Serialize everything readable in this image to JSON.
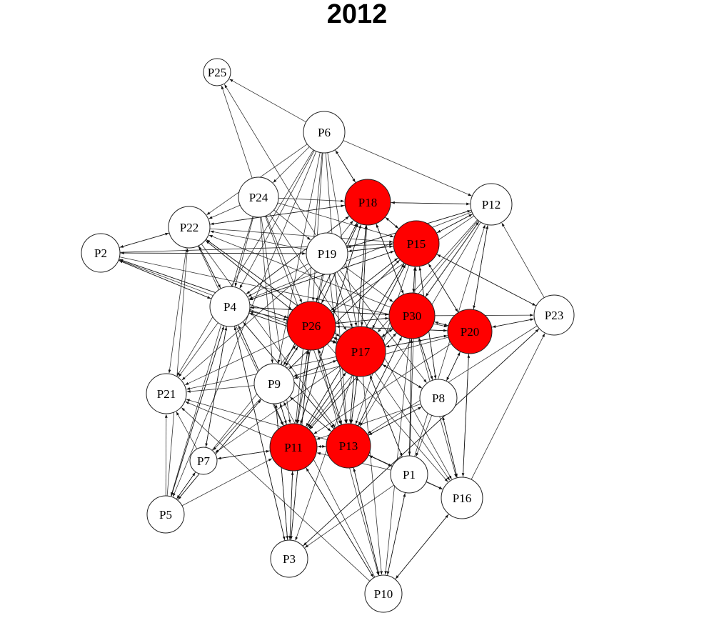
{
  "title": "2012",
  "colors": {
    "highlight": "#ff0000",
    "normal": "#ffffff",
    "stroke": "#222222",
    "edge": "#111111"
  },
  "nodes": [
    {
      "id": "P25",
      "label": "P25",
      "highlight": false
    },
    {
      "id": "P6",
      "label": "P6",
      "highlight": false
    },
    {
      "id": "P24",
      "label": "P24",
      "highlight": false
    },
    {
      "id": "P22",
      "label": "P22",
      "highlight": false
    },
    {
      "id": "P2",
      "label": "P2",
      "highlight": false
    },
    {
      "id": "P18",
      "label": "P18",
      "highlight": true
    },
    {
      "id": "P12",
      "label": "P12",
      "highlight": false
    },
    {
      "id": "P15",
      "label": "P15",
      "highlight": true
    },
    {
      "id": "P19",
      "label": "P19",
      "highlight": false
    },
    {
      "id": "P4",
      "label": "P4",
      "highlight": false
    },
    {
      "id": "P26",
      "label": "P26",
      "highlight": true
    },
    {
      "id": "P30",
      "label": "P30",
      "highlight": true
    },
    {
      "id": "P20",
      "label": "P20",
      "highlight": true
    },
    {
      "id": "P23",
      "label": "P23",
      "highlight": false
    },
    {
      "id": "P17",
      "label": "P17",
      "highlight": true
    },
    {
      "id": "P21",
      "label": "P21",
      "highlight": false
    },
    {
      "id": "P9",
      "label": "P9",
      "highlight": false
    },
    {
      "id": "P8",
      "label": "P8",
      "highlight": false
    },
    {
      "id": "P11",
      "label": "P11",
      "highlight": true
    },
    {
      "id": "P13",
      "label": "P13",
      "highlight": true
    },
    {
      "id": "P7",
      "label": "P7",
      "highlight": false
    },
    {
      "id": "P1",
      "label": "P1",
      "highlight": false
    },
    {
      "id": "P16",
      "label": "P16",
      "highlight": false
    },
    {
      "id": "P5",
      "label": "P5",
      "highlight": false
    },
    {
      "id": "P3",
      "label": "P3",
      "highlight": false
    },
    {
      "id": "P10",
      "label": "P10",
      "highlight": false
    }
  ],
  "edges": [
    [
      "P6",
      "P25"
    ],
    [
      "P6",
      "P24"
    ],
    [
      "P6",
      "P22"
    ],
    [
      "P6",
      "P18"
    ],
    [
      "P6",
      "P12"
    ],
    [
      "P6",
      "P17"
    ],
    [
      "P6",
      "P26"
    ],
    [
      "P6",
      "P4"
    ],
    [
      "P6",
      "P9"
    ],
    [
      "P6",
      "P21"
    ],
    [
      "P6",
      "P11"
    ],
    [
      "P6",
      "P13"
    ],
    [
      "P6",
      "P5"
    ],
    [
      "P24",
      "P25"
    ],
    [
      "P24",
      "P22"
    ],
    [
      "P24",
      "P18"
    ],
    [
      "P24",
      "P19"
    ],
    [
      "P24",
      "P15"
    ],
    [
      "P24",
      "P26"
    ],
    [
      "P24",
      "P17"
    ],
    [
      "P24",
      "P9"
    ],
    [
      "P24",
      "P4"
    ],
    [
      "P24",
      "P11"
    ],
    [
      "P24",
      "P13"
    ],
    [
      "P24",
      "P5"
    ],
    [
      "P22",
      "P2"
    ],
    [
      "P22",
      "P18"
    ],
    [
      "P22",
      "P15"
    ],
    [
      "P22",
      "P26"
    ],
    [
      "P22",
      "P17"
    ],
    [
      "P22",
      "P4"
    ],
    [
      "P22",
      "P21"
    ],
    [
      "P22",
      "P11"
    ],
    [
      "P22",
      "P13"
    ],
    [
      "P2",
      "P22"
    ],
    [
      "P2",
      "P19"
    ],
    [
      "P2",
      "P15"
    ],
    [
      "P2",
      "P26"
    ],
    [
      "P2",
      "P17"
    ],
    [
      "P2",
      "P4"
    ],
    [
      "P2",
      "P20"
    ],
    [
      "P18",
      "P12"
    ],
    [
      "P18",
      "P6"
    ],
    [
      "P18",
      "P15"
    ],
    [
      "P18",
      "P26"
    ],
    [
      "P18",
      "P17"
    ],
    [
      "P18",
      "P30"
    ],
    [
      "P18",
      "P11"
    ],
    [
      "P18",
      "P13"
    ],
    [
      "P18",
      "P4"
    ],
    [
      "P18",
      "P9"
    ],
    [
      "P18",
      "P22"
    ],
    [
      "P12",
      "P18"
    ],
    [
      "P12",
      "P15"
    ],
    [
      "P12",
      "P26"
    ],
    [
      "P12",
      "P17"
    ],
    [
      "P12",
      "P30"
    ],
    [
      "P12",
      "P20"
    ],
    [
      "P12",
      "P19"
    ],
    [
      "P12",
      "P11"
    ],
    [
      "P12",
      "P13"
    ],
    [
      "P12",
      "P4"
    ],
    [
      "P15",
      "P12"
    ],
    [
      "P15",
      "P18"
    ],
    [
      "P15",
      "P26"
    ],
    [
      "P15",
      "P17"
    ],
    [
      "P15",
      "P30"
    ],
    [
      "P15",
      "P20"
    ],
    [
      "P15",
      "P23"
    ],
    [
      "P15",
      "P11"
    ],
    [
      "P15",
      "P13"
    ],
    [
      "P15",
      "P8"
    ],
    [
      "P15",
      "P19"
    ],
    [
      "P15",
      "P4"
    ],
    [
      "P15",
      "P9"
    ],
    [
      "P19",
      "P2"
    ],
    [
      "P19",
      "P25"
    ],
    [
      "P19",
      "P18"
    ],
    [
      "P19",
      "P15"
    ],
    [
      "P19",
      "P12"
    ],
    [
      "P19",
      "P26"
    ],
    [
      "P19",
      "P17"
    ],
    [
      "P19",
      "P30"
    ],
    [
      "P19",
      "P11"
    ],
    [
      "P19",
      "P13"
    ],
    [
      "P19",
      "P4"
    ],
    [
      "P19",
      "P22"
    ],
    [
      "P19",
      "P21"
    ],
    [
      "P19",
      "P16"
    ],
    [
      "P19",
      "P8"
    ],
    [
      "P4",
      "P2"
    ],
    [
      "P4",
      "P22"
    ],
    [
      "P4",
      "P26"
    ],
    [
      "P4",
      "P17"
    ],
    [
      "P4",
      "P21"
    ],
    [
      "P4",
      "P5"
    ],
    [
      "P4",
      "P7"
    ],
    [
      "P4",
      "P11"
    ],
    [
      "P4",
      "P13"
    ],
    [
      "P4",
      "P3"
    ],
    [
      "P4",
      "P18"
    ],
    [
      "P4",
      "P15"
    ],
    [
      "P4",
      "P30"
    ],
    [
      "P26",
      "P18"
    ],
    [
      "P26",
      "P15"
    ],
    [
      "P26",
      "P17"
    ],
    [
      "P26",
      "P11"
    ],
    [
      "P26",
      "P13"
    ],
    [
      "P26",
      "P4"
    ],
    [
      "P26",
      "P22"
    ],
    [
      "P26",
      "P21"
    ],
    [
      "P26",
      "P9"
    ],
    [
      "P26",
      "P30"
    ],
    [
      "P26",
      "P20"
    ],
    [
      "P26",
      "P2"
    ],
    [
      "P26",
      "P16"
    ],
    [
      "P26",
      "P3"
    ],
    [
      "P26",
      "P10"
    ],
    [
      "P30",
      "P15"
    ],
    [
      "P30",
      "P18"
    ],
    [
      "P30",
      "P20"
    ],
    [
      "P30",
      "P17"
    ],
    [
      "P30",
      "P26"
    ],
    [
      "P30",
      "P23"
    ],
    [
      "P30",
      "P12"
    ],
    [
      "P30",
      "P8"
    ],
    [
      "P30",
      "P11"
    ],
    [
      "P30",
      "P13"
    ],
    [
      "P30",
      "P1"
    ],
    [
      "P30",
      "P16"
    ],
    [
      "P30",
      "P4"
    ],
    [
      "P30",
      "P22"
    ],
    [
      "P30",
      "P10"
    ],
    [
      "P20",
      "P23"
    ],
    [
      "P20",
      "P12"
    ],
    [
      "P20",
      "P17"
    ],
    [
      "P20",
      "P8"
    ],
    [
      "P20",
      "P16"
    ],
    [
      "P20",
      "P26"
    ],
    [
      "P20",
      "P15"
    ],
    [
      "P20",
      "P30"
    ],
    [
      "P20",
      "P11"
    ],
    [
      "P20",
      "P9"
    ],
    [
      "P23",
      "P12"
    ],
    [
      "P23",
      "P15"
    ],
    [
      "P23",
      "P20"
    ],
    [
      "P23",
      "P3"
    ],
    [
      "P23",
      "P13"
    ],
    [
      "P17",
      "P18"
    ],
    [
      "P17",
      "P15"
    ],
    [
      "P17",
      "P26"
    ],
    [
      "P17",
      "P30"
    ],
    [
      "P17",
      "P20"
    ],
    [
      "P17",
      "P11"
    ],
    [
      "P17",
      "P13"
    ],
    [
      "P17",
      "P9"
    ],
    [
      "P17",
      "P4"
    ],
    [
      "P17",
      "P22"
    ],
    [
      "P17",
      "P21"
    ],
    [
      "P17",
      "P8"
    ],
    [
      "P17",
      "P1"
    ],
    [
      "P17",
      "P16"
    ],
    [
      "P17",
      "P10"
    ],
    [
      "P17",
      "P3"
    ],
    [
      "P17",
      "P7"
    ],
    [
      "P9",
      "P18"
    ],
    [
      "P9",
      "P26"
    ],
    [
      "P9",
      "P17"
    ],
    [
      "P9",
      "P11"
    ],
    [
      "P9",
      "P13"
    ],
    [
      "P9",
      "P7"
    ],
    [
      "P9",
      "P5"
    ],
    [
      "P9",
      "P3"
    ],
    [
      "P9",
      "P21"
    ],
    [
      "P9",
      "P15"
    ],
    [
      "P8",
      "P15"
    ],
    [
      "P8",
      "P17"
    ],
    [
      "P8",
      "P30"
    ],
    [
      "P8",
      "P16"
    ],
    [
      "P8",
      "P1"
    ],
    [
      "P8",
      "P11"
    ],
    [
      "P8",
      "P13"
    ],
    [
      "P8",
      "P20"
    ],
    [
      "P11",
      "P13"
    ],
    [
      "P11",
      "P26"
    ],
    [
      "P11",
      "P17"
    ],
    [
      "P11",
      "P9"
    ],
    [
      "P11",
      "P7"
    ],
    [
      "P11",
      "P3"
    ],
    [
      "P11",
      "P10"
    ],
    [
      "P11",
      "P21"
    ],
    [
      "P11",
      "P18"
    ],
    [
      "P11",
      "P15"
    ],
    [
      "P11",
      "P30"
    ],
    [
      "P11",
      "P4"
    ],
    [
      "P13",
      "P11"
    ],
    [
      "P13",
      "P17"
    ],
    [
      "P13",
      "P26"
    ],
    [
      "P13",
      "P30"
    ],
    [
      "P13",
      "P10"
    ],
    [
      "P13",
      "P1"
    ],
    [
      "P13",
      "P16"
    ],
    [
      "P13",
      "P21"
    ],
    [
      "P13",
      "P8"
    ],
    [
      "P13",
      "P18"
    ],
    [
      "P13",
      "P9"
    ],
    [
      "P13",
      "P4"
    ],
    [
      "P7",
      "P11"
    ],
    [
      "P7",
      "P5"
    ],
    [
      "P7",
      "P21"
    ],
    [
      "P7",
      "P4"
    ],
    [
      "P7",
      "P26"
    ],
    [
      "P1",
      "P16"
    ],
    [
      "P1",
      "P10"
    ],
    [
      "P1",
      "P3"
    ],
    [
      "P1",
      "P13"
    ],
    [
      "P1",
      "P15"
    ],
    [
      "P1",
      "P30"
    ],
    [
      "P1",
      "P12"
    ],
    [
      "P1",
      "P17"
    ],
    [
      "P1",
      "P11"
    ],
    [
      "P16",
      "P10"
    ],
    [
      "P16",
      "P8"
    ],
    [
      "P16",
      "P20"
    ],
    [
      "P16",
      "P23"
    ],
    [
      "P5",
      "P21"
    ],
    [
      "P5",
      "P4"
    ],
    [
      "P5",
      "P22"
    ],
    [
      "P5",
      "P11"
    ],
    [
      "P5",
      "P9"
    ],
    [
      "P5",
      "P7"
    ],
    [
      "P3",
      "P11"
    ],
    [
      "P3",
      "P9"
    ],
    [
      "P3",
      "P23"
    ],
    [
      "P3",
      "P26"
    ],
    [
      "P3",
      "P4"
    ],
    [
      "P10",
      "P21"
    ],
    [
      "P10",
      "P11"
    ],
    [
      "P10",
      "P13"
    ],
    [
      "P10",
      "P1"
    ],
    [
      "P10",
      "P16"
    ],
    [
      "P10",
      "P9"
    ]
  ]
}
